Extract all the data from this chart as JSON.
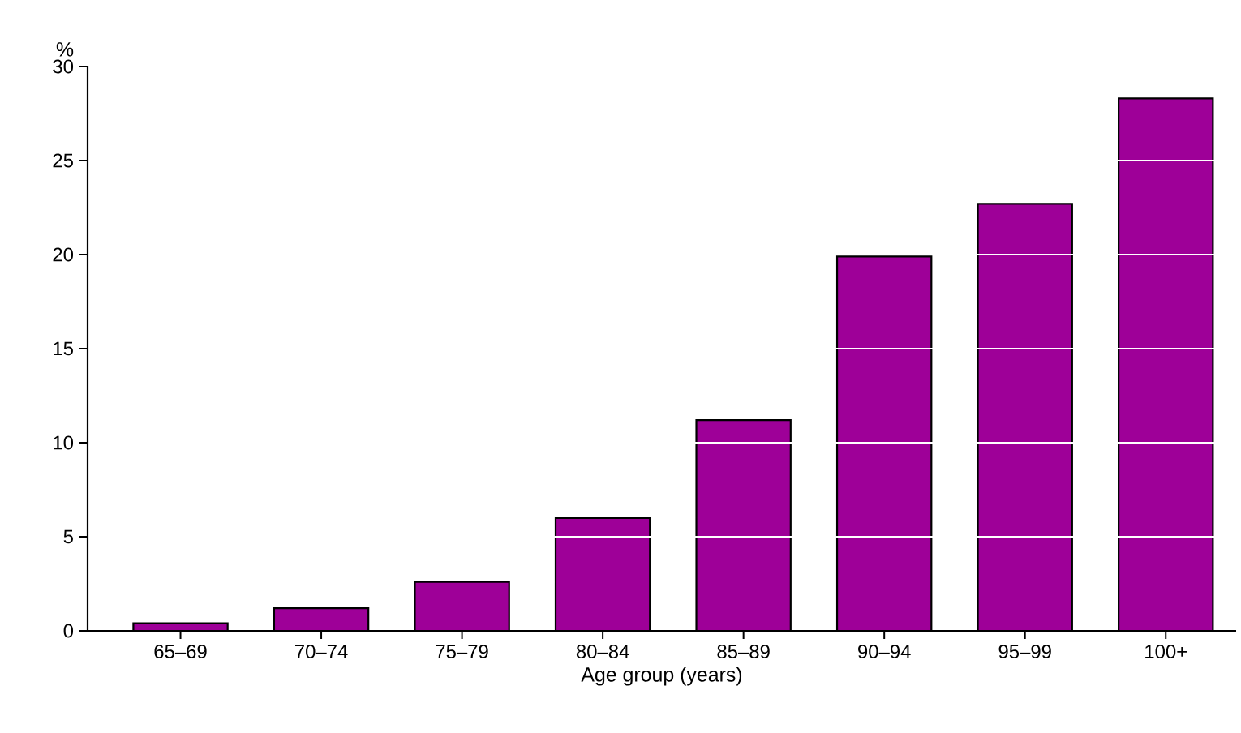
{
  "chart_data": {
    "type": "bar",
    "ylabel": "%",
    "xlabel": "Age group (years)",
    "categories": [
      "65–69",
      "70–74",
      "75–79",
      "80–84",
      "85–89",
      "90–94",
      "95–99",
      "100+"
    ],
    "values": [
      0.4,
      1.2,
      2.6,
      6.0,
      11.2,
      19.9,
      22.7,
      28.3
    ],
    "color": "#9e0098",
    "ylim": [
      0,
      30
    ],
    "yticks": [
      0,
      5,
      10,
      15,
      20,
      25,
      30
    ],
    "grid": "y"
  }
}
